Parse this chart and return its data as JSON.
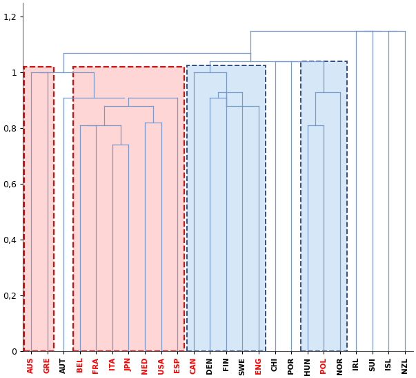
{
  "labels": [
    "AUS",
    "GRE",
    "AUT",
    "BEL",
    "FRA",
    "ITA",
    "JPN",
    "NED",
    "USA",
    "ESP",
    "CAN",
    "DEN",
    "FIN",
    "SWE",
    "ENG",
    "CHI",
    "POR",
    "HUN",
    "POL",
    "NOR",
    "IRL",
    "SUI",
    "ISL",
    "NZL"
  ],
  "label_colors": [
    "red",
    "red",
    "black",
    "red",
    "red",
    "red",
    "red",
    "red",
    "red",
    "red",
    "red",
    "black",
    "black",
    "black",
    "red",
    "black",
    "black",
    "black",
    "red",
    "black",
    "black",
    "black",
    "black",
    "black"
  ],
  "ylim": [
    0,
    1.25
  ],
  "yticks": [
    0,
    0.2,
    0.4,
    0.6,
    0.8,
    1.0,
    1.2
  ],
  "yticklabels": [
    "0",
    "0,2",
    "0,4",
    "0,6",
    "0,8",
    "1",
    "1,2"
  ],
  "bg_color": "#ffffff",
  "dc": "#7799cc",
  "dc2": "#4466aa"
}
